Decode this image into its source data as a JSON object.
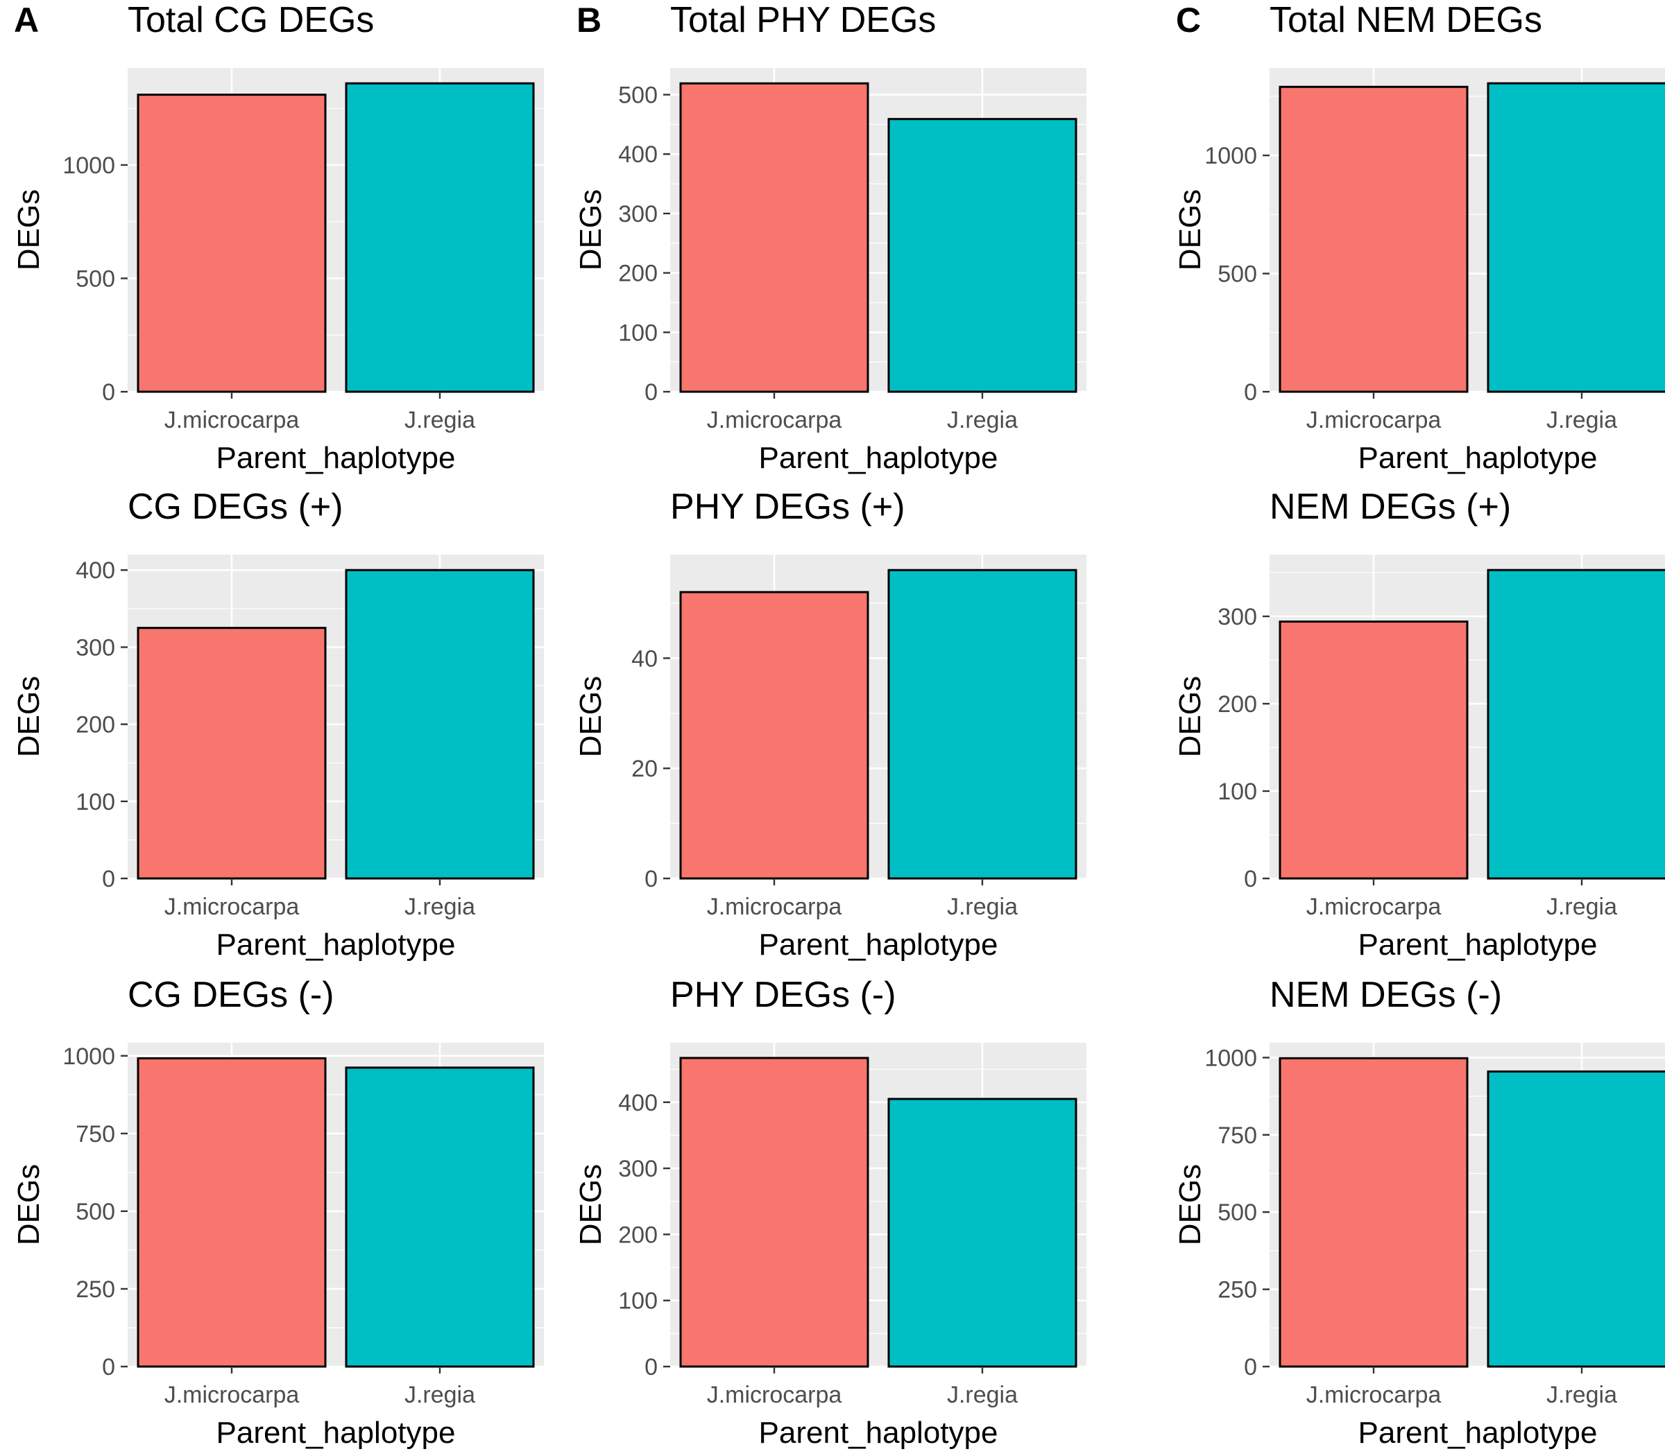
{
  "figure": {
    "background": "#ffffff",
    "panel_background": "#ebebeb",
    "grid_color": "#ffffff",
    "bar_outline": "#000000",
    "tick_color": "#333333"
  },
  "series_colors": {
    "J.microcarpa": "#f8766d",
    "J.regia": "#00bfc4"
  },
  "chart_data": [
    {
      "panel_label": "A",
      "type": "bar",
      "title": "Total CG DEGs",
      "xlabel": "Parent_haplotype",
      "ylabel": "DEGs",
      "categories": [
        "J.microcarpa",
        "J.regia"
      ],
      "values": [
        1310,
        1360
      ],
      "yticks": [
        0,
        500,
        1000
      ],
      "ylim": [
        0,
        1428
      ],
      "grid": true
    },
    {
      "panel_label": "B",
      "type": "bar",
      "title": "Total PHY DEGs",
      "xlabel": "Parent_haplotype",
      "ylabel": "DEGs",
      "categories": [
        "J.microcarpa",
        "J.regia"
      ],
      "values": [
        519,
        459
      ],
      "yticks": [
        0,
        100,
        200,
        300,
        400,
        500
      ],
      "ylim": [
        0,
        545
      ],
      "grid": true
    },
    {
      "panel_label": "C",
      "type": "bar",
      "title": "Total NEM DEGs",
      "xlabel": "Parent_haplotype",
      "ylabel": "DEGs",
      "categories": [
        "J.microcarpa",
        "J.regia"
      ],
      "values": [
        1290,
        1305
      ],
      "yticks": [
        0,
        500,
        1000
      ],
      "ylim": [
        0,
        1370
      ],
      "grid": true
    },
    {
      "panel_label": "",
      "type": "bar",
      "title": "CG DEGs (+)",
      "xlabel": "Parent_haplotype",
      "ylabel": "DEGs",
      "categories": [
        "J.microcarpa",
        "J.regia"
      ],
      "values": [
        325,
        400
      ],
      "yticks": [
        0,
        100,
        200,
        300,
        400
      ],
      "ylim": [
        0,
        420
      ],
      "grid": true
    },
    {
      "panel_label": "",
      "type": "bar",
      "title": "PHY DEGs (+)",
      "xlabel": "Parent_haplotype",
      "ylabel": "DEGs",
      "categories": [
        "J.microcarpa",
        "J.regia"
      ],
      "values": [
        52,
        56
      ],
      "yticks": [
        0,
        20,
        40
      ],
      "ylim": [
        0,
        58.8
      ],
      "grid": true
    },
    {
      "panel_label": "",
      "type": "bar",
      "title": "NEM DEGs (+)",
      "xlabel": "Parent_haplotype",
      "ylabel": "DEGs",
      "categories": [
        "J.microcarpa",
        "J.regia"
      ],
      "values": [
        294,
        353
      ],
      "yticks": [
        0,
        100,
        200,
        300
      ],
      "ylim": [
        0,
        370.6
      ],
      "grid": true
    },
    {
      "panel_label": "",
      "type": "bar",
      "title": "CG DEGs (-)",
      "xlabel": "Parent_haplotype",
      "ylabel": "DEGs",
      "categories": [
        "J.microcarpa",
        "J.regia"
      ],
      "values": [
        992,
        962
      ],
      "yticks": [
        0,
        250,
        500,
        750,
        1000
      ],
      "ylim": [
        0,
        1042
      ],
      "grid": true
    },
    {
      "panel_label": "",
      "type": "bar",
      "title": "PHY DEGs (-)",
      "xlabel": "Parent_haplotype",
      "ylabel": "DEGs",
      "categories": [
        "J.microcarpa",
        "J.regia"
      ],
      "values": [
        467,
        405
      ],
      "yticks": [
        0,
        100,
        200,
        300,
        400
      ],
      "ylim": [
        0,
        490
      ],
      "grid": true
    },
    {
      "panel_label": "",
      "type": "bar",
      "title": "NEM DEGs (-)",
      "xlabel": "Parent_haplotype",
      "ylabel": "DEGs",
      "categories": [
        "J.microcarpa",
        "J.regia"
      ],
      "values": [
        998,
        955
      ],
      "yticks": [
        0,
        250,
        500,
        750,
        1000
      ],
      "ylim": [
        0,
        1048
      ],
      "grid": true
    }
  ]
}
